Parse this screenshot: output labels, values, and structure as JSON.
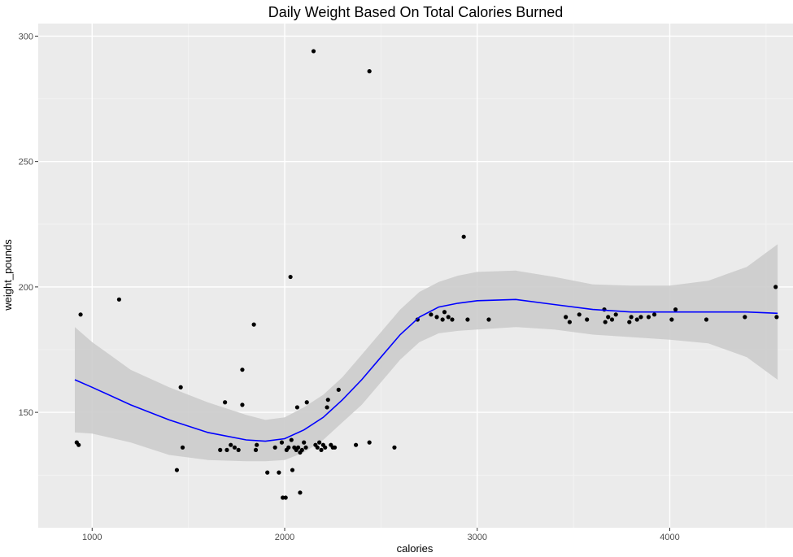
{
  "chart_data": {
    "type": "scatter",
    "title": "Daily Weight Based On Total Calories Burned",
    "xlabel": "calories",
    "ylabel": "weight_pounds",
    "xlim": [
      720,
      4640
    ],
    "ylim": [
      104,
      305
    ],
    "x_ticks": [
      1000,
      2000,
      3000,
      4000
    ],
    "y_ticks": [
      150,
      200,
      250,
      300
    ],
    "grid": true,
    "legend": "none",
    "colors": {
      "panel": "#ebebeb",
      "grid_major": "#ffffff",
      "points": "#000000",
      "smooth_line": "#0000ff",
      "ribbon": "#cccccc"
    },
    "points": [
      {
        "x": 920,
        "y": 138
      },
      {
        "x": 930,
        "y": 137
      },
      {
        "x": 940,
        "y": 189
      },
      {
        "x": 1140,
        "y": 195
      },
      {
        "x": 1440,
        "y": 127
      },
      {
        "x": 1460,
        "y": 160
      },
      {
        "x": 1470,
        "y": 136
      },
      {
        "x": 1665,
        "y": 135
      },
      {
        "x": 1690,
        "y": 154
      },
      {
        "x": 1700,
        "y": 135
      },
      {
        "x": 1720,
        "y": 137
      },
      {
        "x": 1740,
        "y": 136
      },
      {
        "x": 1760,
        "y": 135
      },
      {
        "x": 1780,
        "y": 167
      },
      {
        "x": 1780,
        "y": 153
      },
      {
        "x": 1840,
        "y": 185
      },
      {
        "x": 1850,
        "y": 135
      },
      {
        "x": 1855,
        "y": 137
      },
      {
        "x": 1910,
        "y": 126
      },
      {
        "x": 1950,
        "y": 136
      },
      {
        "x": 1970,
        "y": 126
      },
      {
        "x": 1985,
        "y": 138
      },
      {
        "x": 1990,
        "y": 116
      },
      {
        "x": 2005,
        "y": 116
      },
      {
        "x": 2010,
        "y": 135
      },
      {
        "x": 2020,
        "y": 136
      },
      {
        "x": 2030,
        "y": 204
      },
      {
        "x": 2035,
        "y": 139
      },
      {
        "x": 2040,
        "y": 127
      },
      {
        "x": 2050,
        "y": 136
      },
      {
        "x": 2060,
        "y": 135
      },
      {
        "x": 2065,
        "y": 152
      },
      {
        "x": 2070,
        "y": 136
      },
      {
        "x": 2080,
        "y": 134
      },
      {
        "x": 2080,
        "y": 118
      },
      {
        "x": 2090,
        "y": 135
      },
      {
        "x": 2100,
        "y": 138
      },
      {
        "x": 2110,
        "y": 136
      },
      {
        "x": 2115,
        "y": 154
      },
      {
        "x": 2150,
        "y": 294
      },
      {
        "x": 2160,
        "y": 137
      },
      {
        "x": 2170,
        "y": 136
      },
      {
        "x": 2180,
        "y": 138
      },
      {
        "x": 2190,
        "y": 135
      },
      {
        "x": 2200,
        "y": 137
      },
      {
        "x": 2210,
        "y": 136
      },
      {
        "x": 2220,
        "y": 152
      },
      {
        "x": 2225,
        "y": 155
      },
      {
        "x": 2240,
        "y": 137
      },
      {
        "x": 2250,
        "y": 136
      },
      {
        "x": 2260,
        "y": 136
      },
      {
        "x": 2280,
        "y": 159
      },
      {
        "x": 2370,
        "y": 137
      },
      {
        "x": 2440,
        "y": 286
      },
      {
        "x": 2440,
        "y": 138
      },
      {
        "x": 2570,
        "y": 136
      },
      {
        "x": 2690,
        "y": 187
      },
      {
        "x": 2760,
        "y": 189
      },
      {
        "x": 2790,
        "y": 188
      },
      {
        "x": 2820,
        "y": 187
      },
      {
        "x": 2830,
        "y": 190
      },
      {
        "x": 2850,
        "y": 188
      },
      {
        "x": 2870,
        "y": 187
      },
      {
        "x": 2930,
        "y": 220
      },
      {
        "x": 2950,
        "y": 187
      },
      {
        "x": 3060,
        "y": 187
      },
      {
        "x": 3460,
        "y": 188
      },
      {
        "x": 3480,
        "y": 186
      },
      {
        "x": 3530,
        "y": 189
      },
      {
        "x": 3570,
        "y": 187
      },
      {
        "x": 3660,
        "y": 191
      },
      {
        "x": 3665,
        "y": 186
      },
      {
        "x": 3680,
        "y": 188
      },
      {
        "x": 3700,
        "y": 187
      },
      {
        "x": 3720,
        "y": 189
      },
      {
        "x": 3790,
        "y": 186
      },
      {
        "x": 3800,
        "y": 188
      },
      {
        "x": 3830,
        "y": 187
      },
      {
        "x": 3850,
        "y": 188
      },
      {
        "x": 3890,
        "y": 188
      },
      {
        "x": 3920,
        "y": 189
      },
      {
        "x": 4010,
        "y": 187
      },
      {
        "x": 4030,
        "y": 191
      },
      {
        "x": 4190,
        "y": 187
      },
      {
        "x": 4390,
        "y": 188
      },
      {
        "x": 4550,
        "y": 200
      },
      {
        "x": 4555,
        "y": 188
      }
    ],
    "smooth": {
      "x": [
        910,
        1000,
        1200,
        1400,
        1600,
        1800,
        1900,
        2000,
        2100,
        2200,
        2300,
        2400,
        2500,
        2600,
        2700,
        2800,
        2900,
        3000,
        3200,
        3400,
        3600,
        3800,
        4000,
        4200,
        4400,
        4560
      ],
      "y": [
        163,
        160,
        153,
        147,
        142,
        139,
        138.5,
        139.5,
        143,
        148,
        155,
        163,
        172,
        181,
        188,
        192,
        193.5,
        194.5,
        195,
        193,
        191,
        190,
        190,
        190,
        190,
        189.5
      ],
      "lower": [
        142,
        141.5,
        138,
        133,
        131,
        130.5,
        130.5,
        131,
        134,
        139,
        146,
        153,
        162,
        171,
        178,
        181.5,
        182.5,
        183,
        184,
        183,
        181,
        180,
        179,
        177.5,
        172,
        163
      ],
      "upper": [
        184,
        178,
        167,
        160,
        154,
        149,
        147,
        148,
        152,
        157,
        164,
        173,
        182,
        191,
        198,
        202,
        204.5,
        206,
        206.5,
        204,
        201,
        200.5,
        200.5,
        202.5,
        208,
        217
      ]
    }
  }
}
